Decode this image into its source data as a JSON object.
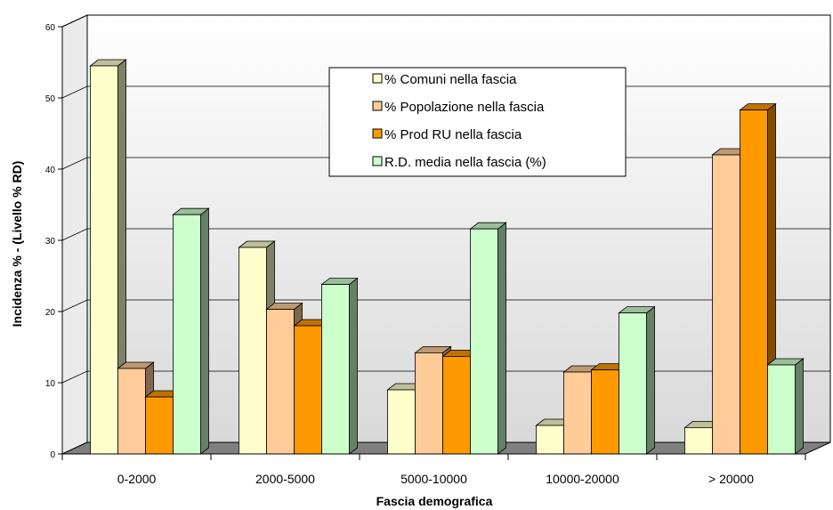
{
  "chart_data": {
    "type": "bar",
    "style": "3d-clustered-column",
    "xlabel": "Fascia demografica",
    "ylabel": "Incidenza % -   (Livello % RD)",
    "ylim": [
      0,
      60
    ],
    "yticks": [
      "0",
      "10",
      "20",
      "30",
      "40",
      "50",
      "60"
    ],
    "grid": true,
    "legend_position": "top-center",
    "categories": [
      "0-2000",
      "2000-5000",
      "5000-10000",
      "10000-20000",
      "> 20000"
    ],
    "series": [
      {
        "name": "% Comuni nella fascia",
        "color": "#FFFFCC",
        "values": [
          54.5,
          29,
          9,
          4,
          3.7
        ]
      },
      {
        "name": "% Popolazione nella fascia",
        "color": "#FFCC99",
        "values": [
          12,
          20.3,
          14.2,
          11.5,
          42
        ]
      },
      {
        "name": "% Prod RU nella fascia",
        "color": "#FF9900",
        "values": [
          8,
          18,
          13.7,
          11.8,
          48.3
        ]
      },
      {
        "name": "R.D. media nella fascia (%)",
        "color": "#CCFFCC",
        "values": [
          33.6,
          23.8,
          31.6,
          19.8,
          12.5
        ]
      }
    ]
  }
}
